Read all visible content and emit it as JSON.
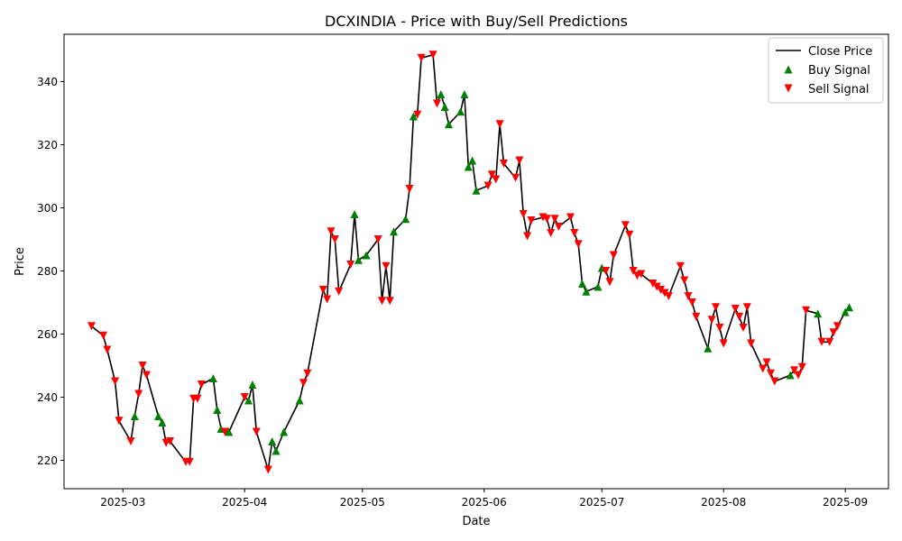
{
  "chart_data": {
    "type": "line",
    "title": "DCXINDIA - Price with Buy/Sell Predictions",
    "xlabel": "Date",
    "ylabel": "Price",
    "x_range": [
      "2025-02-14",
      "2025-09-12"
    ],
    "ylim": [
      211,
      355
    ],
    "x_ticks": [
      {
        "date": "2025-03-01",
        "label": "2025-03"
      },
      {
        "date": "2025-04-01",
        "label": "2025-04"
      },
      {
        "date": "2025-05-01",
        "label": "2025-05"
      },
      {
        "date": "2025-06-01",
        "label": "2025-06"
      },
      {
        "date": "2025-07-01",
        "label": "2025-07"
      },
      {
        "date": "2025-08-01",
        "label": "2025-08"
      },
      {
        "date": "2025-09-01",
        "label": "2025-09"
      }
    ],
    "y_ticks": [
      220,
      240,
      260,
      280,
      300,
      320,
      340
    ],
    "grid": false,
    "legend_position": "upper-right",
    "legend": [
      {
        "label": "Close Price",
        "kind": "line",
        "color": "#000000"
      },
      {
        "label": "Buy Signal",
        "kind": "marker-up",
        "color": "#008000"
      },
      {
        "label": "Sell Signal",
        "kind": "marker-down",
        "color": "#ff0000"
      }
    ],
    "colors": {
      "line": "#000000",
      "buy": "#008000",
      "sell": "#ff0000"
    },
    "series": [
      {
        "name": "Close Price",
        "points": [
          [
            "2025-02-21",
            262.5,
            "S"
          ],
          [
            "2025-02-24",
            259.5,
            "S"
          ],
          [
            "2025-02-25",
            255,
            "S"
          ],
          [
            "2025-02-27",
            245,
            "S"
          ],
          [
            "2025-02-28",
            232.5,
            "S"
          ],
          [
            "2025-03-03",
            226,
            "S"
          ],
          [
            "2025-03-04",
            234,
            "B"
          ],
          [
            "2025-03-05",
            241,
            "S"
          ],
          [
            "2025-03-06",
            250,
            "S"
          ],
          [
            "2025-03-07",
            247,
            "S"
          ],
          [
            "2025-03-10",
            234,
            "B"
          ],
          [
            "2025-03-11",
            232,
            "B"
          ],
          [
            "2025-03-12",
            225.5,
            "S"
          ],
          [
            "2025-03-13",
            226,
            "S"
          ],
          [
            "2025-03-17",
            219.5,
            "S"
          ],
          [
            "2025-03-18",
            219.5,
            "S"
          ],
          [
            "2025-03-19",
            239.5,
            "S"
          ],
          [
            "2025-03-20",
            239.5,
            "S"
          ],
          [
            "2025-03-21",
            244,
            "S"
          ],
          [
            "2025-03-24",
            246,
            "B"
          ],
          [
            "2025-03-25",
            236,
            "B"
          ],
          [
            "2025-03-26",
            230,
            "B"
          ],
          [
            "2025-03-27",
            229,
            "S"
          ],
          [
            "2025-03-28",
            229,
            "B"
          ],
          [
            "2025-04-01",
            240,
            "S"
          ],
          [
            "2025-04-02",
            239,
            "B"
          ],
          [
            "2025-04-03",
            244,
            "B"
          ],
          [
            "2025-04-04",
            229,
            "S"
          ],
          [
            "2025-04-07",
            217,
            "S"
          ],
          [
            "2025-04-08",
            226,
            "B"
          ],
          [
            "2025-04-09",
            223,
            "B"
          ],
          [
            "2025-04-11",
            229,
            "B"
          ],
          [
            "2025-04-15",
            239,
            "B"
          ],
          [
            "2025-04-16",
            244.5,
            "S"
          ],
          [
            "2025-04-17",
            247.5,
            "S"
          ],
          [
            "2025-04-21",
            274,
            "S"
          ],
          [
            "2025-04-22",
            271,
            "S"
          ],
          [
            "2025-04-23",
            292.5,
            "S"
          ],
          [
            "2025-04-24",
            290,
            "S"
          ],
          [
            "2025-04-25",
            273.5,
            "S"
          ],
          [
            "2025-04-28",
            282,
            "S"
          ],
          [
            "2025-04-29",
            298,
            "B"
          ],
          [
            "2025-04-30",
            283.5,
            "B"
          ],
          [
            "2025-05-02",
            285,
            "B"
          ],
          [
            "2025-05-05",
            290,
            "S"
          ],
          [
            "2025-05-06",
            270.5,
            "S"
          ],
          [
            "2025-05-07",
            281.5,
            "S"
          ],
          [
            "2025-05-08",
            270.5,
            "S"
          ],
          [
            "2025-05-09",
            292.5,
            "B"
          ],
          [
            "2025-05-12",
            296.5,
            "B"
          ],
          [
            "2025-05-13",
            306,
            "S"
          ],
          [
            "2025-05-14",
            329,
            "B"
          ],
          [
            "2025-05-15",
            329.5,
            "S"
          ],
          [
            "2025-05-16",
            347.5,
            "S"
          ],
          [
            "2025-05-19",
            348.5,
            "S"
          ],
          [
            "2025-05-20",
            333,
            "S"
          ],
          [
            "2025-05-21",
            336,
            "B"
          ],
          [
            "2025-05-22",
            332,
            "B"
          ],
          [
            "2025-05-23",
            326.5,
            "B"
          ],
          [
            "2025-05-26",
            330.5,
            "B"
          ],
          [
            "2025-05-27",
            336,
            "B"
          ],
          [
            "2025-05-28",
            313,
            "B"
          ],
          [
            "2025-05-29",
            315,
            "B"
          ],
          [
            "2025-05-30",
            305.5,
            "B"
          ],
          [
            "2025-06-02",
            307,
            "S"
          ],
          [
            "2025-06-03",
            310.5,
            "S"
          ],
          [
            "2025-06-04",
            309,
            "S"
          ],
          [
            "2025-06-05",
            326.5,
            "S"
          ],
          [
            "2025-06-06",
            314,
            "S"
          ],
          [
            "2025-06-09",
            309.5,
            "S"
          ],
          [
            "2025-06-10",
            315,
            "S"
          ],
          [
            "2025-06-11",
            298,
            "S"
          ],
          [
            "2025-06-12",
            291,
            "S"
          ],
          [
            "2025-06-13",
            296,
            "S"
          ],
          [
            "2025-06-16",
            297,
            "S"
          ],
          [
            "2025-06-17",
            296.5,
            "S"
          ],
          [
            "2025-06-18",
            292,
            "S"
          ],
          [
            "2025-06-19",
            296.5,
            "S"
          ],
          [
            "2025-06-20",
            294,
            "S"
          ],
          [
            "2025-06-23",
            297,
            "S"
          ],
          [
            "2025-06-24",
            292,
            "S"
          ],
          [
            "2025-06-25",
            288.5,
            "S"
          ],
          [
            "2025-06-26",
            276,
            "B"
          ],
          [
            "2025-06-27",
            273.5,
            "B"
          ],
          [
            "2025-06-30",
            275,
            "B"
          ],
          [
            "2025-07-01",
            281,
            "B"
          ],
          [
            "2025-07-02",
            280,
            "S"
          ],
          [
            "2025-07-03",
            276.5,
            "S"
          ],
          [
            "2025-07-04",
            285,
            "S"
          ],
          [
            "2025-07-07",
            294.5,
            "S"
          ],
          [
            "2025-07-08",
            291.5,
            "S"
          ],
          [
            "2025-07-09",
            280,
            "S"
          ],
          [
            "2025-07-10",
            278.5,
            "S"
          ],
          [
            "2025-07-11",
            279,
            "S"
          ],
          [
            "2025-07-14",
            276,
            "S"
          ],
          [
            "2025-07-15",
            275,
            "S"
          ],
          [
            "2025-07-16",
            274,
            "S"
          ],
          [
            "2025-07-17",
            273,
            "S"
          ],
          [
            "2025-07-18",
            272,
            "S"
          ],
          [
            "2025-07-21",
            281.5,
            "S"
          ],
          [
            "2025-07-22",
            277,
            "S"
          ],
          [
            "2025-07-23",
            272,
            "S"
          ],
          [
            "2025-07-24",
            270,
            "S"
          ],
          [
            "2025-07-25",
            265.5,
            "S"
          ],
          [
            "2025-07-28",
            255.5,
            "B"
          ],
          [
            "2025-07-29",
            264.5,
            "S"
          ],
          [
            "2025-07-30",
            268.5,
            "S"
          ],
          [
            "2025-07-31",
            262,
            "S"
          ],
          [
            "2025-08-01",
            257,
            "S"
          ],
          [
            "2025-08-04",
            268,
            "S"
          ],
          [
            "2025-08-05",
            265.5,
            "S"
          ],
          [
            "2025-08-06",
            262,
            "S"
          ],
          [
            "2025-08-07",
            268.5,
            "S"
          ],
          [
            "2025-08-08",
            257,
            "S"
          ],
          [
            "2025-08-11",
            249,
            "S"
          ],
          [
            "2025-08-12",
            251,
            "S"
          ],
          [
            "2025-08-13",
            247.5,
            "S"
          ],
          [
            "2025-08-14",
            245,
            "S"
          ],
          [
            "2025-08-18",
            247,
            "B"
          ],
          [
            "2025-08-19",
            248.5,
            "S"
          ],
          [
            "2025-08-20",
            247,
            "S"
          ],
          [
            "2025-08-21",
            249.5,
            "S"
          ],
          [
            "2025-08-22",
            267.5,
            "S"
          ],
          [
            "2025-08-25",
            266.5,
            "B"
          ],
          [
            "2025-08-26",
            257.5,
            "S"
          ],
          [
            "2025-08-28",
            257.5,
            "S"
          ],
          [
            "2025-08-29",
            260.5,
            "S"
          ],
          [
            "2025-08-30",
            262.5,
            "S"
          ],
          [
            "2025-09-01",
            267,
            "B"
          ],
          [
            "2025-09-02",
            268.5,
            "B"
          ]
        ]
      }
    ]
  }
}
